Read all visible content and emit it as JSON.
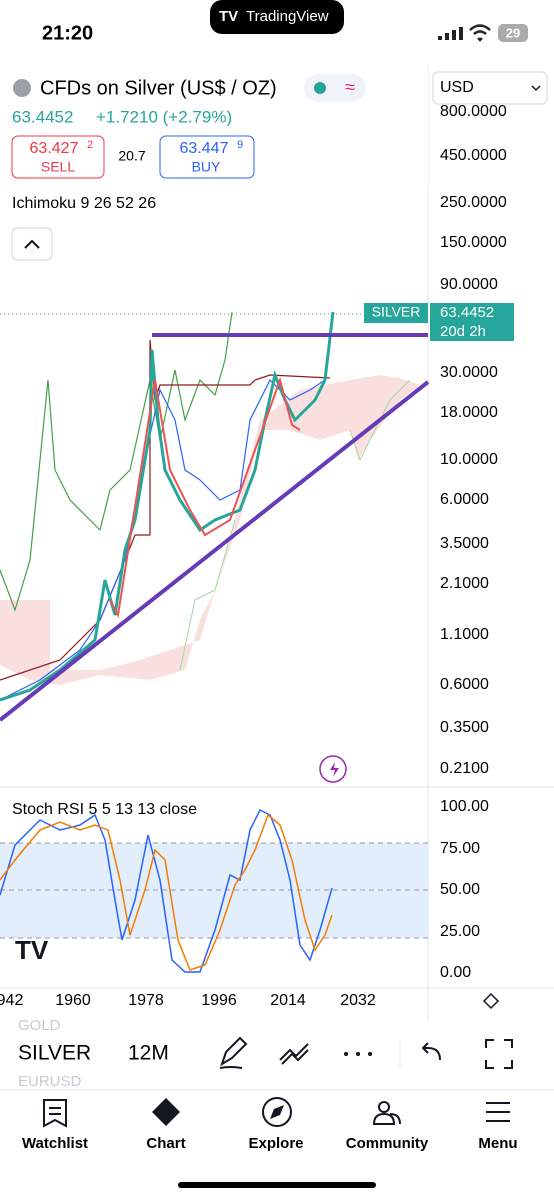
{
  "status": {
    "time": "21:20",
    "battery": "29",
    "banner": "TradingView"
  },
  "header": {
    "title": "CFDs on Silver (US$ / OZ)",
    "price": "63.4452",
    "change": "+1.7210 (+2.79%)",
    "sell_price": "63.427",
    "sell_sup": "2",
    "sell": "SELL",
    "spread": "20.7",
    "buy_price": "63.447",
    "buy_sup": "9",
    "buy": "BUY",
    "currency": "USD"
  },
  "indicator": "Ichimoku 9 26 52 26",
  "price_axis": [
    "800.0000",
    "450.0000",
    "250.0000",
    "150.0000",
    "90.0000",
    "30.0000",
    "18.0000",
    "10.0000",
    "6.0000",
    "3.5000",
    "2.1000",
    "1.1000",
    "0.6000",
    "0.3500",
    "0.2100"
  ],
  "price_tag": {
    "symbol": "SILVER",
    "price": "63.4452",
    "countdown": "20d 2h"
  },
  "oscillator": {
    "label": "Stoch RSI 5 5 13 13 close",
    "axis": [
      "100.00",
      "75.00",
      "50.00",
      "25.00",
      "0.00"
    ]
  },
  "time_axis": [
    "942",
    "1960",
    "1978",
    "1996",
    "2014",
    "2032"
  ],
  "toolbar": {
    "above": "GOLD",
    "symbol": "SILVER",
    "interval": "12M",
    "below": "EURUSD"
  },
  "nav": [
    "Watchlist",
    "Chart",
    "Explore",
    "Community",
    "Menu"
  ]
}
